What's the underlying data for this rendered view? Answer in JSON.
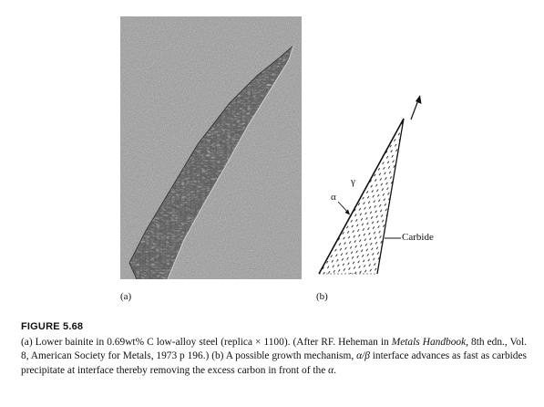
{
  "panels": {
    "a_label": "(a)",
    "b_label": "(b)"
  },
  "diagram": {
    "gamma": "γ",
    "alpha": "α",
    "carbide": "Carbide"
  },
  "figure": {
    "title": "FIGURE 5.68",
    "caption_1": "(a) Lower bainite in 0.69wt% C low-alloy steel (replica × 1100). (After RF. Heheman in ",
    "caption_italic_1": "Metals Handbook,",
    "caption_2": " 8th edn., Vol. 8, American Society for Metals, 1973 p 196.) (b) A possible growth mechanism, ",
    "caption_italic_2": "α/β",
    "caption_3": " interface advances as fast as carbides precipitate at interface thereby removing the excess carbon in front of the ",
    "caption_italic_3": "α",
    "caption_4": "."
  }
}
